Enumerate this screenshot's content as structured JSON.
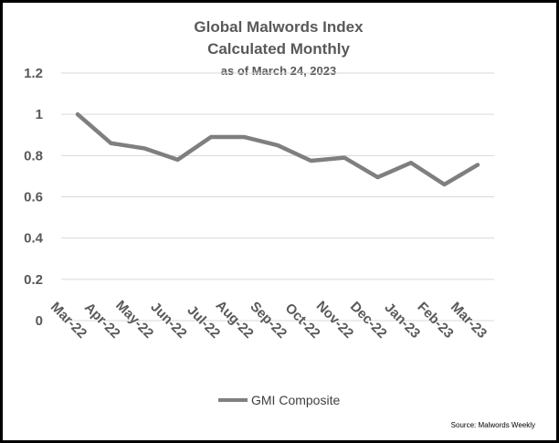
{
  "chart_data": {
    "type": "line",
    "title": "Global Malwords Index",
    "subtitle": "Calculated Monthly",
    "date_note": "as of March 24, 2023",
    "categories": [
      "Mar-22",
      "Apr-22",
      "May-22",
      "Jun-22",
      "Jul-22",
      "Aug-22",
      "Sep-22",
      "Oct-22",
      "Nov-22",
      "Dec-22",
      "Jan-23",
      "Feb-23",
      "Mar-23"
    ],
    "series": [
      {
        "name": "GMI Composite",
        "values": [
          1.0,
          0.86,
          0.835,
          0.78,
          0.89,
          0.89,
          0.85,
          0.775,
          0.79,
          0.695,
          0.765,
          0.66,
          0.755
        ]
      }
    ],
    "yticks": [
      "0",
      "0.2",
      "0.4",
      "0.6",
      "0.8",
      "1",
      "1.2"
    ],
    "ylim": [
      0,
      1.2
    ],
    "xlabel": "",
    "ylabel": "",
    "grid": true,
    "legend_position": "bottom",
    "source": "Source: Malwords Weekly"
  },
  "colors": {
    "line": "#7f7f7f",
    "grid": "#d9d9d9",
    "text": "#595959",
    "border": "#000000"
  }
}
